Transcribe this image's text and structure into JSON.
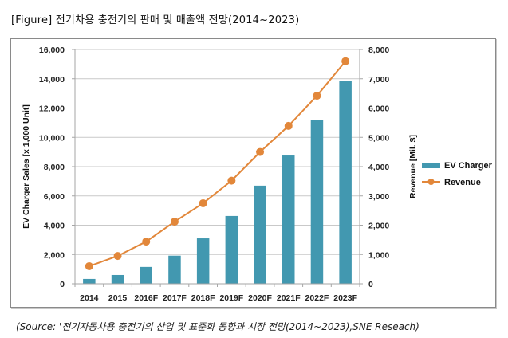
{
  "figure": {
    "title": "[Figure] 전기차용  충전기의  판매  및  매출액  전망(2014~2023)",
    "source": "(Source: '전기자동차용  충전기의  산업  및  표준화  동향과  시장  전망(2014~2023),SNE  Reseach)"
  },
  "colors": {
    "bar": "#4298b0",
    "line": "#e2873a",
    "grid": "#c9c9c9",
    "axis": "#a6a6a6"
  },
  "chart_data": {
    "type": "bar",
    "title": "",
    "categories": [
      "2014",
      "2015",
      "2016F",
      "2017F",
      "2018F",
      "2019F",
      "2020F",
      "2021F",
      "2022F",
      "2023F"
    ],
    "series": [
      {
        "name": "EV Charger",
        "type": "bar",
        "axis": "left",
        "values": [
          330,
          600,
          1150,
          1920,
          3100,
          4630,
          6700,
          8760,
          11200,
          13850
        ]
      },
      {
        "name": "Revenue",
        "type": "line",
        "axis": "right",
        "marker": "circle",
        "values": [
          600,
          950,
          1440,
          2120,
          2750,
          3520,
          4500,
          5390,
          6420,
          7600
        ]
      }
    ],
    "ylabel": "EV Charger Sales [x 1,000 Unit]",
    "y2label": "Revenue [Mil. $]",
    "xlabel": "",
    "ylim": [
      0,
      16000
    ],
    "y2lim": [
      0,
      8000
    ],
    "yticks": [
      "0",
      "2,000",
      "4,000",
      "6,000",
      "8,000",
      "10,000",
      "12,000",
      "14,000",
      "16,000"
    ],
    "y2ticks": [
      "0",
      "1,000",
      "2,000",
      "3,000",
      "4,000",
      "5,000",
      "6,000",
      "7,000",
      "8,000"
    ],
    "grid": true,
    "legend": {
      "position": "right",
      "entries": [
        "EV Charger",
        "Revenue"
      ]
    }
  }
}
